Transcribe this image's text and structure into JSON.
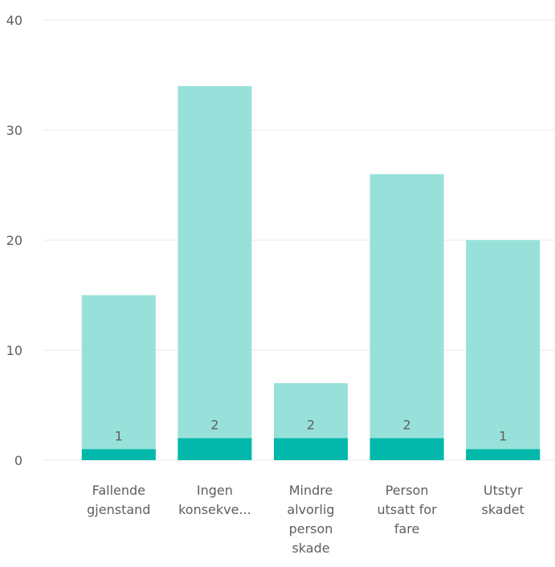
{
  "chart_data": {
    "type": "bar",
    "categories": [
      [
        "Fallende",
        "gjenstand"
      ],
      [
        "Ingen",
        "konsekve..."
      ],
      [
        "Mindre",
        "alvorlig",
        "person",
        "skade"
      ],
      [
        "Person",
        "utsatt for",
        "fare"
      ],
      [
        "Utstyr",
        "skadet"
      ]
    ],
    "series": [
      {
        "values": [
          15,
          34,
          7,
          26,
          20
        ],
        "color": "#98e1da"
      },
      {
        "values": [
          1,
          2,
          2,
          2,
          1
        ],
        "color": "#01b8aa"
      }
    ],
    "data_labels": [
      "1",
      "2",
      "2",
      "2",
      "1"
    ],
    "y_ticks": [
      0,
      10,
      20,
      30,
      40
    ],
    "y_tick_labels": [
      "0",
      "10",
      "20",
      "30",
      "40"
    ],
    "ylim": [
      0,
      40
    ],
    "grid": true,
    "overlap": true
  }
}
